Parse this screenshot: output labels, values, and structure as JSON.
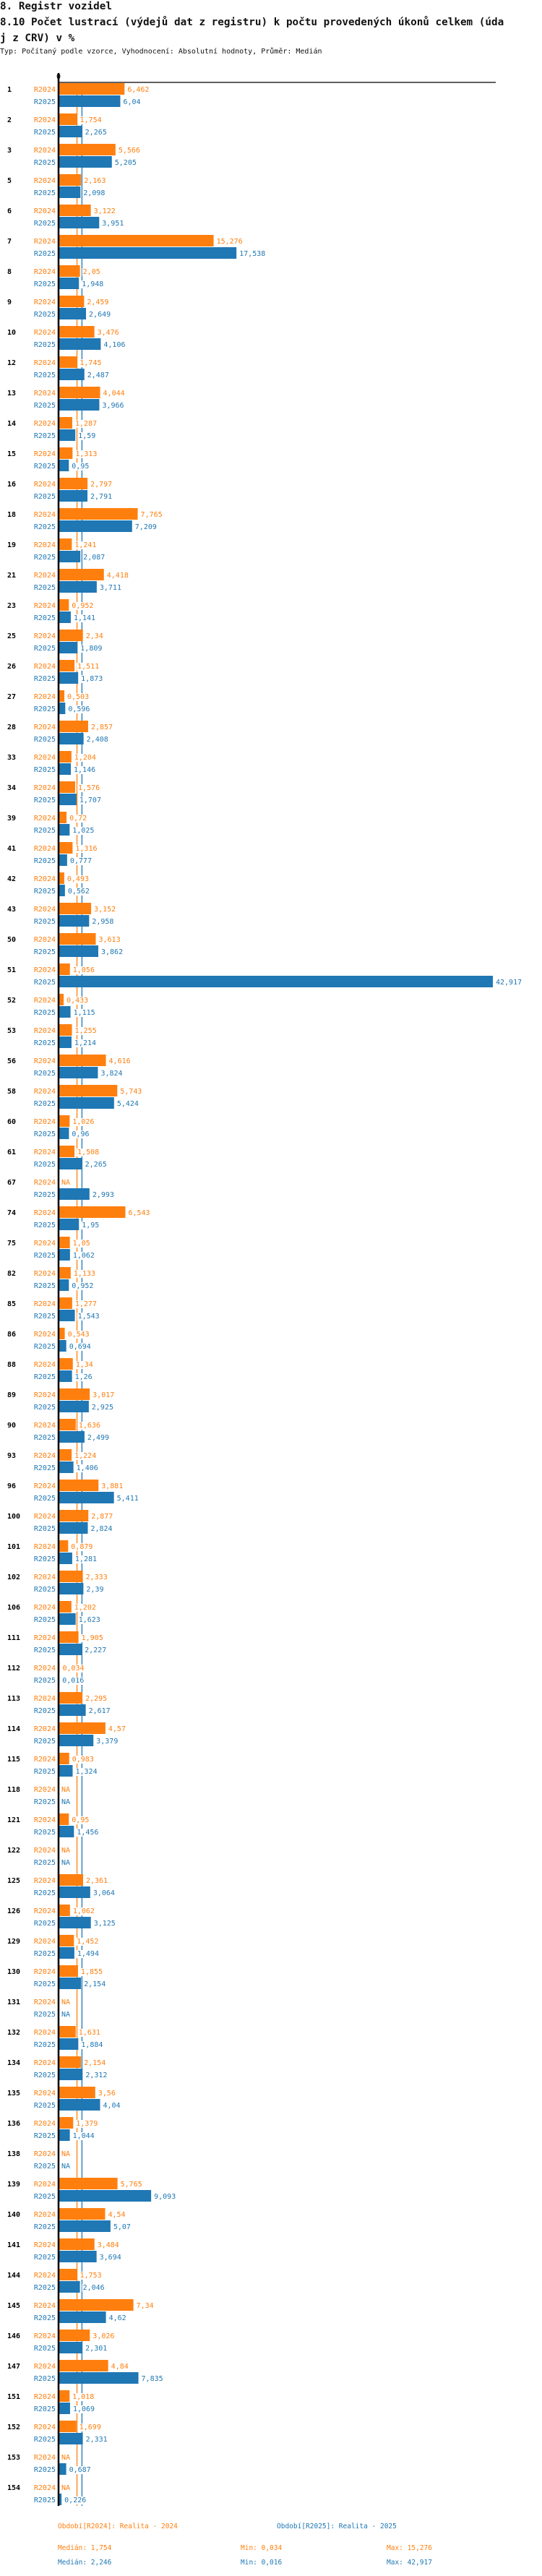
{
  "header": {
    "section": "8. Registr vozidel",
    "title_line1": "8.10 Počet lustrací (výdejů dat z registru) k počtu provedených úkonů celkem (úda",
    "title_line2": "j z CRV) v %",
    "subtitle": "Typ: Počítaný podle vzorce, Vyhodnocení: Absolutní hodnoty, Průměr: Medián"
  },
  "chart_data": {
    "type": "bar",
    "orientation": "horizontal",
    "title": "8.10 Počet lustrací (výdejů dat z registru) k počtu provedených úkonů celkem (údaj z CRV) v %",
    "axis_zero_label": "0",
    "xlim": [
      0,
      42.917
    ],
    "categories": [
      "1",
      "2",
      "3",
      "5",
      "6",
      "7",
      "8",
      "9",
      "10",
      "12",
      "13",
      "14",
      "15",
      "16",
      "18",
      "19",
      "21",
      "23",
      "25",
      "26",
      "27",
      "28",
      "33",
      "34",
      "39",
      "41",
      "42",
      "43",
      "50",
      "51",
      "52",
      "53",
      "56",
      "58",
      "60",
      "61",
      "67",
      "74",
      "75",
      "82",
      "85",
      "86",
      "88",
      "89",
      "90",
      "93",
      "96",
      "100",
      "101",
      "102",
      "106",
      "111",
      "112",
      "113",
      "114",
      "115",
      "118",
      "121",
      "122",
      "125",
      "126",
      "129",
      "130",
      "131",
      "132",
      "134",
      "135",
      "136",
      "138",
      "139",
      "140",
      "141",
      "144",
      "145",
      "146",
      "147",
      "151",
      "152",
      "153",
      "154"
    ],
    "series": [
      {
        "name": "R2024",
        "color": "#ff7f0e",
        "median": 1.754,
        "values": [
          6.462,
          1.754,
          5.566,
          2.163,
          3.122,
          15.276,
          2.05,
          2.459,
          3.476,
          1.745,
          4.044,
          1.287,
          1.313,
          2.797,
          7.765,
          1.241,
          4.418,
          0.952,
          2.34,
          1.511,
          0.503,
          2.857,
          1.204,
          1.576,
          0.72,
          1.316,
          0.493,
          3.152,
          3.613,
          1.056,
          0.433,
          1.255,
          4.616,
          5.743,
          1.026,
          1.508,
          null,
          6.543,
          1.05,
          1.133,
          1.277,
          0.543,
          1.34,
          3.017,
          1.636,
          1.224,
          3.881,
          2.877,
          0.879,
          2.333,
          1.202,
          1.905,
          0.034,
          2.295,
          4.57,
          0.983,
          null,
          0.95,
          null,
          2.361,
          1.062,
          1.452,
          1.855,
          null,
          1.631,
          2.154,
          3.56,
          1.379,
          null,
          5.765,
          4.54,
          3.484,
          1.753,
          7.34,
          3.026,
          4.84,
          1.018,
          1.699,
          null,
          null
        ]
      },
      {
        "name": "R2025",
        "color": "#1f77b4",
        "median": 2.246,
        "values": [
          6.04,
          2.265,
          5.205,
          2.098,
          3.951,
          17.538,
          1.948,
          2.649,
          4.106,
          2.487,
          3.966,
          1.59,
          0.95,
          2.791,
          7.209,
          2.087,
          3.711,
          1.141,
          1.809,
          1.873,
          0.596,
          2.408,
          1.146,
          1.707,
          1.025,
          0.777,
          0.562,
          2.958,
          3.862,
          42.917,
          1.115,
          1.214,
          3.824,
          5.424,
          0.96,
          2.265,
          2.993,
          1.95,
          1.062,
          0.952,
          1.543,
          0.694,
          1.26,
          2.925,
          2.499,
          1.406,
          5.411,
          2.824,
          1.281,
          2.39,
          1.623,
          2.227,
          0.016,
          2.617,
          3.379,
          1.324,
          null,
          1.456,
          null,
          3.064,
          3.125,
          1.494,
          2.154,
          null,
          1.884,
          2.312,
          4.04,
          1.044,
          null,
          9.093,
          5.07,
          3.694,
          2.046,
          4.62,
          2.301,
          7.835,
          1.069,
          2.331,
          0.687,
          0.226
        ]
      }
    ],
    "na_label": "NA",
    "decimal_separator": ","
  },
  "footer": {
    "legend_r2024": "Období[R2024]: Realita - 2024",
    "legend_r2025": "Období[R2025]: Realita - 2025",
    "r2024_median": "Medián: 1,754",
    "r2024_min": "Min: 0,034",
    "r2024_max": "Max: 15,276",
    "r2025_median": "Medián: 2,246",
    "r2025_min": "Min: 0,016",
    "r2025_max": "Max: 42,917"
  }
}
